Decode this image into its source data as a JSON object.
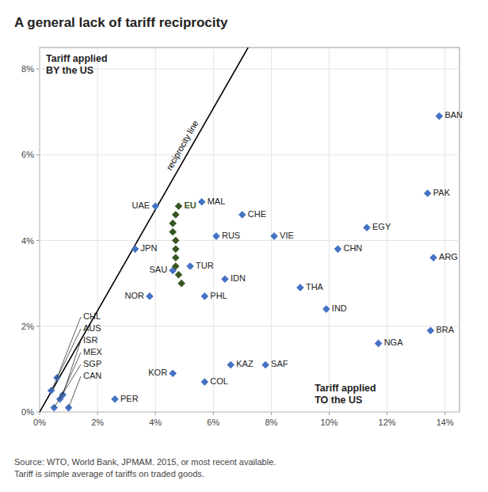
{
  "chart_data": {
    "type": "scatter",
    "title": "A general lack of tariff reciprocity",
    "source": "Source: WTO, World Bank, JPMAM. 2015, or most recent available.\nTariff is simple average of tariffs on traded goods.",
    "xlim": [
      0,
      0.145
    ],
    "ylim": [
      0,
      0.085
    ],
    "xticks": [
      {
        "value": 0,
        "label": "0%"
      },
      {
        "value": 0.02,
        "label": "2%"
      },
      {
        "value": 0.04,
        "label": "4%"
      },
      {
        "value": 0.06,
        "label": "6%"
      },
      {
        "value": 0.08,
        "label": "8%"
      },
      {
        "value": 0.1,
        "label": "10%"
      },
      {
        "value": 0.12,
        "label": "12%"
      },
      {
        "value": 0.14,
        "label": "14%"
      }
    ],
    "yticks": [
      {
        "value": 0,
        "label": "0%"
      },
      {
        "value": 0.02,
        "label": "2%"
      },
      {
        "value": 0.04,
        "label": "4%"
      },
      {
        "value": 0.06,
        "label": "6%"
      },
      {
        "value": 0.08,
        "label": "8%"
      }
    ],
    "grid": true,
    "series": [
      {
        "color": "#4472c4",
        "marker": "diamond",
        "labels": [
          "BAN",
          "PAK",
          "EGY",
          "ARG",
          "CHN",
          "THA",
          "IND",
          "NGA",
          "BRA",
          "VIE",
          "CHE",
          "RUS",
          "IDN",
          "PHL",
          "MAL",
          "TUR",
          "SAU",
          "NOR",
          "JPN",
          "UAE",
          "KAZ",
          "SAF",
          "COL",
          "KOR",
          "SGP",
          "MEX",
          "AUS",
          "CHL",
          "CAN",
          "ISR",
          "PER"
        ],
        "x": [
          0.138,
          0.134,
          0.113,
          0.136,
          0.103,
          0.09,
          0.099,
          0.117,
          0.135,
          0.081,
          0.07,
          0.061,
          0.064,
          0.057,
          0.056,
          0.052,
          0.046,
          0.038,
          0.033,
          0.04,
          0.066,
          0.078,
          0.057,
          0.046,
          0.005,
          0.007,
          0.004,
          0.006,
          0.01,
          0.008,
          0.026
        ],
        "values": [
          0.069,
          0.051,
          0.043,
          0.036,
          0.038,
          0.029,
          0.024,
          0.016,
          0.019,
          0.041,
          0.046,
          0.041,
          0.031,
          0.027,
          0.049,
          0.034,
          0.033,
          0.027,
          0.038,
          0.048,
          0.011,
          0.011,
          0.007,
          0.009,
          0.001,
          0.003,
          0.005,
          0.008,
          0.001,
          0.004,
          0.003
        ]
      },
      {
        "color": "#375623",
        "marker": "diamond",
        "labels": [
          "EU",
          null,
          null,
          null,
          null,
          null,
          null,
          null,
          null,
          null
        ],
        "x": [
          0.048,
          0.047,
          0.046,
          0.046,
          0.047,
          0.047,
          0.047,
          0.047,
          0.048,
          0.049
        ],
        "values": [
          0.048,
          0.046,
          0.044,
          0.042,
          0.04,
          0.038,
          0.036,
          0.034,
          0.032,
          0.03
        ]
      }
    ],
    "lines": [
      {
        "label": "reciprocity line",
        "color": "black",
        "x": [
          0.0,
          0.072
        ],
        "values": [
          0.0,
          0.085
        ]
      }
    ],
    "annotations": [
      "Tariff applied\nBY the US",
      "Tariff applied\nTO the US"
    ]
  }
}
